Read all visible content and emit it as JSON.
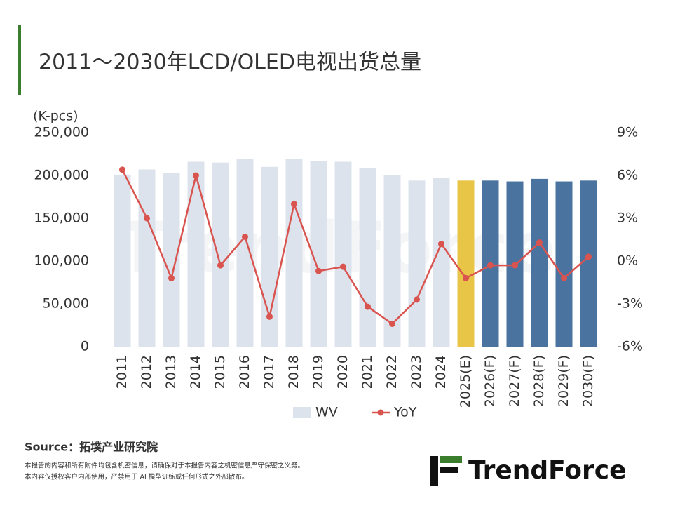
{
  "chart_data": {
    "type": "bar-line",
    "title": "2011～2030年LCD/OLED电视出货总量",
    "y_axis_label": "(K-pcs)",
    "categories": [
      "2011",
      "2012",
      "2013",
      "2014",
      "2015",
      "2016",
      "2017",
      "2018",
      "2019",
      "2020",
      "2021",
      "2022",
      "2023",
      "2024",
      "2025(E)",
      "2026(F)",
      "2027(F)",
      "2028(F)",
      "2029(F)",
      "2030(F)"
    ],
    "series": [
      {
        "name": "WV",
        "color": "#dde3ec",
        "point_colors": [
          "#dde3ec",
          "#dde3ec",
          "#dde3ec",
          "#dde3ec",
          "#dde3ec",
          "#dde3ec",
          "#dde3ec",
          "#dde3ec",
          "#dde3ec",
          "#dde3ec",
          "#dde3ec",
          "#dde3ec",
          "#dde3ec",
          "#dde3ec",
          "#e8c547",
          "#4a73a0",
          "#4a73a0",
          "#4a73a0",
          "#4a73a0",
          "#4a73a0"
        ],
        "values": [
          201000,
          207000,
          203000,
          216000,
          215000,
          219000,
          210000,
          219000,
          217000,
          216000,
          209000,
          200000,
          194000,
          197000,
          194000,
          194000,
          193000,
          196000,
          193000,
          194000
        ]
      },
      {
        "name": "YoY",
        "color": "#d9534f",
        "axis": "y2",
        "values": [
          6.4,
          3.0,
          -1.2,
          6.0,
          -0.3,
          1.7,
          -3.9,
          4.0,
          -0.7,
          -0.4,
          -3.2,
          -4.4,
          -2.7,
          1.2,
          -1.2,
          -0.3,
          -0.3,
          1.3,
          -1.2,
          0.3
        ]
      }
    ],
    "ylim": [
      0,
      250000
    ],
    "yticks": [
      0,
      {
        "value": 50000,
        "label": "50,000"
      },
      {
        "value": 100000,
        "label": "100,000"
      },
      {
        "value": 150000,
        "label": "150,000"
      },
      {
        "value": 200000,
        "label": "200,000"
      },
      {
        "value": 250000,
        "label": "250,000"
      }
    ],
    "y2lim": [
      -6,
      9
    ],
    "y2ticks": [
      {
        "value": -6,
        "label": "-6%"
      },
      {
        "value": -3,
        "label": "-3%"
      },
      {
        "value": 0,
        "label": "0%"
      },
      {
        "value": 3,
        "label": "3%"
      },
      {
        "value": 6,
        "label": "6%"
      },
      {
        "value": 9,
        "label": "9%"
      }
    ],
    "source": "Source：拓墣产业研究院",
    "disclaimer": [
      "本报告的内容和所有附件均包含机密信息，请确保对于本报告内容之机密信息严守保密之义务。",
      "本内容仅授权客户内部使用，严禁用于 AI 模型训练或任何形式之外部散布。"
    ],
    "logo": "TrendForce"
  }
}
